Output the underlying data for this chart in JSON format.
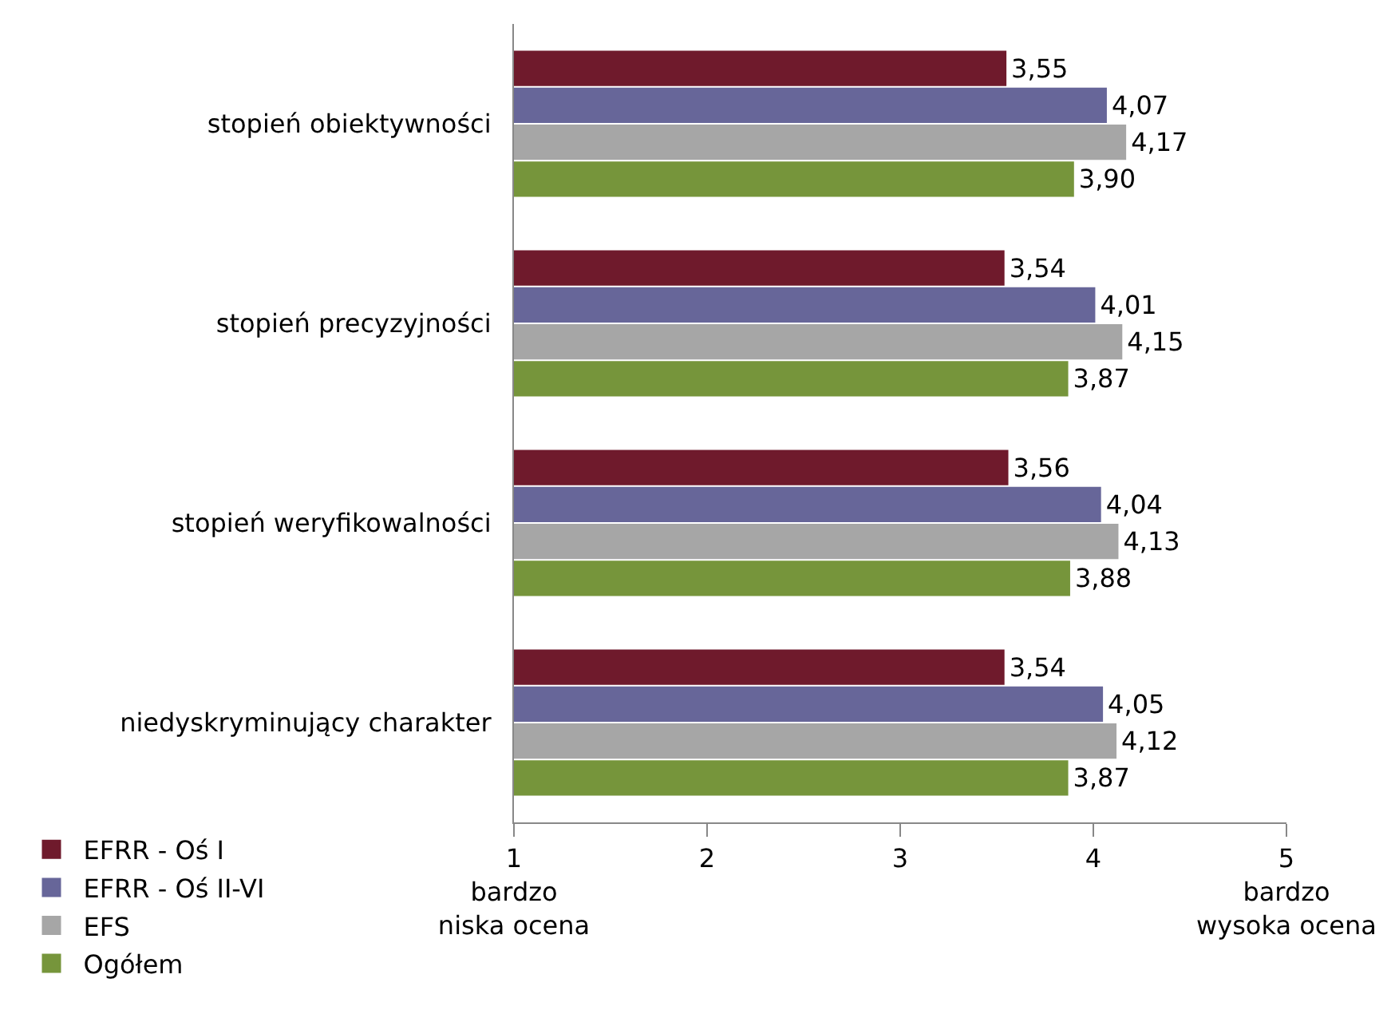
{
  "chart_data": {
    "type": "bar",
    "orientation": "horizontal",
    "categories": [
      "stopień obiektywności",
      "stopień precyzyjności",
      "stopień weryfikowalności",
      "niedyskryminujący charakter"
    ],
    "series": [
      {
        "name": "EFRR - Oś I",
        "color": "#6f1a2c",
        "values": [
          3.55,
          3.54,
          3.56,
          3.54
        ],
        "value_labels": [
          "3,55",
          "3,54",
          "3,56",
          "3,54"
        ]
      },
      {
        "name": "EFRR - Oś II-VI",
        "color": "#676699",
        "values": [
          4.07,
          4.01,
          4.04,
          4.05
        ],
        "value_labels": [
          "4,07",
          "4,01",
          "4,04",
          "4,05"
        ]
      },
      {
        "name": "EFS",
        "color": "#a6a6a6",
        "values": [
          4.17,
          4.15,
          4.13,
          4.12
        ],
        "value_labels": [
          "4,17",
          "4,15",
          "4,13",
          "4,12"
        ]
      },
      {
        "name": "Ogółem",
        "color": "#76953b",
        "values": [
          3.9,
          3.87,
          3.88,
          3.87
        ],
        "value_labels": [
          "3,90",
          "3,87",
          "3,88",
          "3,87"
        ]
      }
    ],
    "xlim": [
      1,
      5
    ],
    "xticks": [
      {
        "value": 1,
        "label": "1\nbardzo\nniska ocena"
      },
      2,
      3,
      4,
      {
        "value": 5,
        "label": "5\nbardzo\nwysoka ocena"
      }
    ],
    "grid": false,
    "legend": "bottom left"
  }
}
